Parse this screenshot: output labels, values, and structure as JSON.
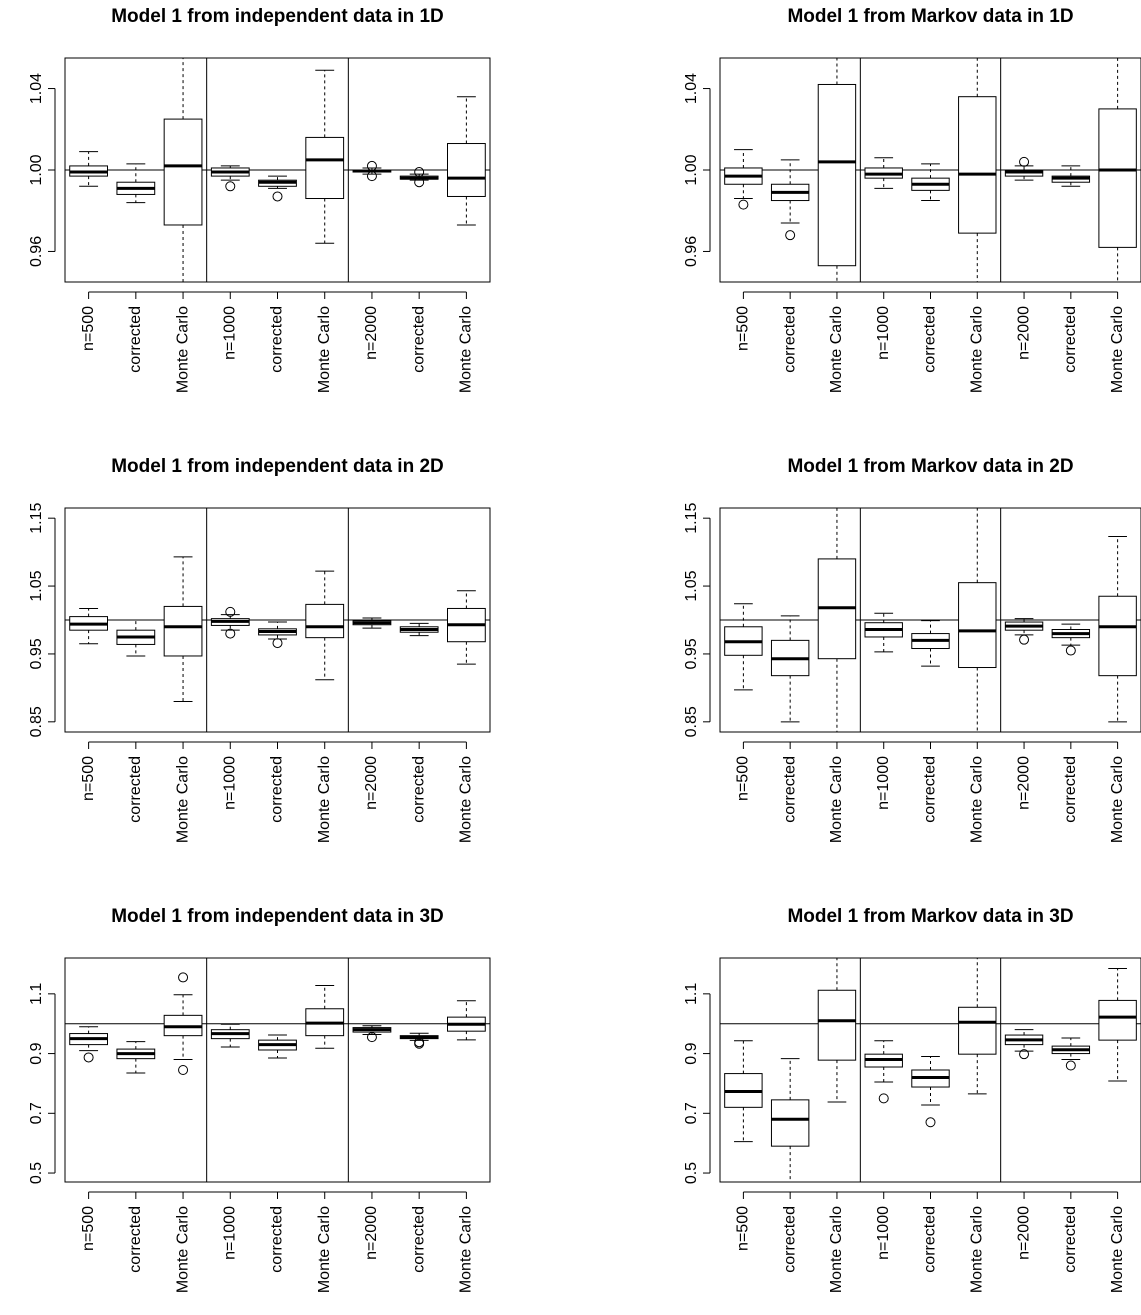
{
  "chart_data": [
    {
      "type": "box",
      "title": "Model 1 from independent data in 1D",
      "categories": [
        "n=500",
        "corrected",
        "Monte Carlo",
        "n=1000",
        "corrected",
        "Monte Carlo",
        "n=2000",
        "corrected",
        "Monte Carlo"
      ],
      "ylim": [
        0.945,
        1.055
      ],
      "yticks": [
        0.96,
        1.0,
        1.04
      ],
      "ytick_labels": [
        "0.96",
        "1.00",
        "1.04"
      ],
      "reference_line": 1.0,
      "group_separators_after": [
        3,
        6
      ],
      "boxes": [
        {
          "whisker_low": 0.992,
          "q1": 0.997,
          "median": 0.999,
          "q3": 1.002,
          "whisker_high": 1.009,
          "outliers": []
        },
        {
          "whisker_low": 0.984,
          "q1": 0.988,
          "median": 0.991,
          "q3": 0.994,
          "whisker_high": 1.003,
          "outliers": []
        },
        {
          "whisker_low": 0.945,
          "q1": 0.973,
          "median": 1.002,
          "q3": 1.025,
          "whisker_high": 1.055,
          "outliers": []
        },
        {
          "whisker_low": 0.995,
          "q1": 0.997,
          "median": 0.999,
          "q3": 1.001,
          "whisker_high": 1.002,
          "outliers": [
            0.992
          ]
        },
        {
          "whisker_low": 0.991,
          "q1": 0.992,
          "median": 0.994,
          "q3": 0.995,
          "whisker_high": 0.997,
          "outliers": [
            0.987
          ]
        },
        {
          "whisker_low": 0.964,
          "q1": 0.986,
          "median": 1.005,
          "q3": 1.016,
          "whisker_high": 1.049,
          "outliers": []
        },
        {
          "whisker_low": 0.998,
          "q1": 0.999,
          "median": 0.9995,
          "q3": 1.0,
          "whisker_high": 1.001,
          "outliers": [
            0.997,
            1.002
          ]
        },
        {
          "whisker_low": 0.995,
          "q1": 0.9955,
          "median": 0.996,
          "q3": 0.997,
          "whisker_high": 0.998,
          "outliers": [
            0.994,
            0.999
          ]
        },
        {
          "whisker_low": 0.973,
          "q1": 0.987,
          "median": 0.996,
          "q3": 1.013,
          "whisker_high": 1.036,
          "outliers": []
        }
      ]
    },
    {
      "type": "box",
      "title": "Model 1 from Markov data in 1D",
      "categories": [
        "n=500",
        "corrected",
        "Monte Carlo",
        "n=1000",
        "corrected",
        "Monte Carlo",
        "n=2000",
        "corrected",
        "Monte Carlo"
      ],
      "ylim": [
        0.945,
        1.055
      ],
      "yticks": [
        0.96,
        1.0,
        1.04
      ],
      "ytick_labels": [
        "0.96",
        "1.00",
        "1.04"
      ],
      "reference_line": 1.0,
      "group_separators_after": [
        3,
        6
      ],
      "boxes": [
        {
          "whisker_low": 0.986,
          "q1": 0.993,
          "median": 0.997,
          "q3": 1.001,
          "whisker_high": 1.01,
          "outliers": [
            0.983
          ]
        },
        {
          "whisker_low": 0.974,
          "q1": 0.985,
          "median": 0.989,
          "q3": 0.993,
          "whisker_high": 1.005,
          "outliers": [
            0.968
          ]
        },
        {
          "whisker_low": 0.945,
          "q1": 0.953,
          "median": 1.004,
          "q3": 1.042,
          "whisker_high": 1.055,
          "outliers": []
        },
        {
          "whisker_low": 0.991,
          "q1": 0.996,
          "median": 0.998,
          "q3": 1.001,
          "whisker_high": 1.006,
          "outliers": []
        },
        {
          "whisker_low": 0.985,
          "q1": 0.99,
          "median": 0.993,
          "q3": 0.996,
          "whisker_high": 1.003,
          "outliers": []
        },
        {
          "whisker_low": 0.945,
          "q1": 0.969,
          "median": 0.998,
          "q3": 1.036,
          "whisker_high": 1.055,
          "outliers": []
        },
        {
          "whisker_low": 0.995,
          "q1": 0.997,
          "median": 0.999,
          "q3": 1.0,
          "whisker_high": 1.002,
          "outliers": [
            1.004
          ]
        },
        {
          "whisker_low": 0.992,
          "q1": 0.994,
          "median": 0.996,
          "q3": 0.997,
          "whisker_high": 1.002,
          "outliers": []
        },
        {
          "whisker_low": 0.945,
          "q1": 0.962,
          "median": 1.0,
          "q3": 1.03,
          "whisker_high": 1.055,
          "outliers": []
        }
      ]
    },
    {
      "type": "box",
      "title": "Model 1 from independent data in 2D",
      "categories": [
        "n=500",
        "corrected",
        "Monte Carlo",
        "n=1000",
        "corrected",
        "Monte Carlo",
        "n=2000",
        "corrected",
        "Monte Carlo"
      ],
      "ylim": [
        0.835,
        1.165
      ],
      "yticks": [
        0.85,
        0.95,
        1.05,
        1.15
      ],
      "ytick_labels": [
        "0.85",
        "0.95",
        "1.05",
        "1.15"
      ],
      "reference_line": 1.0,
      "group_separators_after": [
        3,
        6
      ],
      "boxes": [
        {
          "whisker_low": 0.965,
          "q1": 0.985,
          "median": 0.994,
          "q3": 1.005,
          "whisker_high": 1.017,
          "outliers": []
        },
        {
          "whisker_low": 0.947,
          "q1": 0.964,
          "median": 0.975,
          "q3": 0.985,
          "whisker_high": 1.0,
          "outliers": []
        },
        {
          "whisker_low": 0.88,
          "q1": 0.947,
          "median": 0.99,
          "q3": 1.02,
          "whisker_high": 1.093,
          "outliers": []
        },
        {
          "whisker_low": 0.985,
          "q1": 0.992,
          "median": 0.998,
          "q3": 1.002,
          "whisker_high": 1.008,
          "outliers": [
            0.98,
            1.012
          ]
        },
        {
          "whisker_low": 0.972,
          "q1": 0.978,
          "median": 0.983,
          "q3": 0.987,
          "whisker_high": 0.997,
          "outliers": [
            0.966
          ]
        },
        {
          "whisker_low": 0.912,
          "q1": 0.974,
          "median": 0.99,
          "q3": 1.023,
          "whisker_high": 1.072,
          "outliers": []
        },
        {
          "whisker_low": 0.988,
          "q1": 0.993,
          "median": 0.996,
          "q3": 0.999,
          "whisker_high": 1.003,
          "outliers": []
        },
        {
          "whisker_low": 0.977,
          "q1": 0.982,
          "median": 0.986,
          "q3": 0.99,
          "whisker_high": 0.995,
          "outliers": []
        },
        {
          "whisker_low": 0.935,
          "q1": 0.968,
          "median": 0.993,
          "q3": 1.017,
          "whisker_high": 1.043,
          "outliers": []
        }
      ]
    },
    {
      "type": "box",
      "title": "Model 1 from Markov data in 2D",
      "categories": [
        "n=500",
        "corrected",
        "Monte Carlo",
        "n=1000",
        "corrected",
        "Monte Carlo",
        "n=2000",
        "corrected",
        "Monte Carlo"
      ],
      "ylim": [
        0.835,
        1.165
      ],
      "yticks": [
        0.85,
        0.95,
        1.05,
        1.15
      ],
      "ytick_labels": [
        "0.85",
        "0.95",
        "1.05",
        "1.15"
      ],
      "reference_line": 1.0,
      "group_separators_after": [
        3,
        6
      ],
      "boxes": [
        {
          "whisker_low": 0.897,
          "q1": 0.948,
          "median": 0.968,
          "q3": 0.99,
          "whisker_high": 1.024,
          "outliers": []
        },
        {
          "whisker_low": 0.85,
          "q1": 0.918,
          "median": 0.943,
          "q3": 0.97,
          "whisker_high": 1.006,
          "outliers": []
        },
        {
          "whisker_low": 0.835,
          "q1": 0.943,
          "median": 1.018,
          "q3": 1.09,
          "whisker_high": 1.165,
          "outliers": []
        },
        {
          "whisker_low": 0.953,
          "q1": 0.975,
          "median": 0.986,
          "q3": 0.996,
          "whisker_high": 1.01,
          "outliers": []
        },
        {
          "whisker_low": 0.932,
          "q1": 0.958,
          "median": 0.97,
          "q3": 0.98,
          "whisker_high": 0.999,
          "outliers": []
        },
        {
          "whisker_low": 0.835,
          "q1": 0.93,
          "median": 0.984,
          "q3": 1.055,
          "whisker_high": 1.165,
          "outliers": []
        },
        {
          "whisker_low": 0.978,
          "q1": 0.985,
          "median": 0.991,
          "q3": 0.997,
          "whisker_high": 1.002,
          "outliers": [
            0.971
          ]
        },
        {
          "whisker_low": 0.963,
          "q1": 0.974,
          "median": 0.98,
          "q3": 0.986,
          "whisker_high": 0.994,
          "outliers": [
            0.955
          ]
        },
        {
          "whisker_low": 0.85,
          "q1": 0.918,
          "median": 0.99,
          "q3": 1.035,
          "whisker_high": 1.123,
          "outliers": []
        }
      ]
    },
    {
      "type": "box",
      "title": "Model 1 from independent data in 3D",
      "categories": [
        "n=500",
        "corrected",
        "Monte Carlo",
        "n=1000",
        "corrected",
        "Monte Carlo",
        "n=2000",
        "corrected",
        "Monte Carlo"
      ],
      "ylim": [
        0.47,
        1.22
      ],
      "yticks": [
        0.5,
        0.7,
        0.9,
        1.1
      ],
      "ytick_labels": [
        "0.5",
        "0.7",
        "0.9",
        "1.1"
      ],
      "reference_line": 1.0,
      "group_separators_after": [
        3,
        6
      ],
      "boxes": [
        {
          "whisker_low": 0.91,
          "q1": 0.93,
          "median": 0.95,
          "q3": 0.967,
          "whisker_high": 0.99,
          "outliers": [
            0.887
          ]
        },
        {
          "whisker_low": 0.835,
          "q1": 0.883,
          "median": 0.9,
          "q3": 0.915,
          "whisker_high": 0.94,
          "outliers": []
        },
        {
          "whisker_low": 0.88,
          "q1": 0.96,
          "median": 0.99,
          "q3": 1.028,
          "whisker_high": 1.097,
          "outliers": [
            0.845,
            1.155
          ]
        },
        {
          "whisker_low": 0.922,
          "q1": 0.95,
          "median": 0.967,
          "q3": 0.98,
          "whisker_high": 0.998,
          "outliers": []
        },
        {
          "whisker_low": 0.885,
          "q1": 0.912,
          "median": 0.93,
          "q3": 0.945,
          "whisker_high": 0.962,
          "outliers": []
        },
        {
          "whisker_low": 0.918,
          "q1": 0.96,
          "median": 1.002,
          "q3": 1.05,
          "whisker_high": 1.128,
          "outliers": []
        },
        {
          "whisker_low": 0.964,
          "q1": 0.972,
          "median": 0.98,
          "q3": 0.987,
          "whisker_high": 0.993,
          "outliers": [
            0.955
          ]
        },
        {
          "whisker_low": 0.944,
          "q1": 0.95,
          "median": 0.955,
          "q3": 0.96,
          "whisker_high": 0.968,
          "outliers": [
            0.933,
            0.938
          ]
        },
        {
          "whisker_low": 0.946,
          "q1": 0.975,
          "median": 0.998,
          "q3": 1.022,
          "whisker_high": 1.077,
          "outliers": []
        }
      ]
    },
    {
      "type": "box",
      "title": "Model 1 from Markov data in 3D",
      "categories": [
        "n=500",
        "corrected",
        "Monte Carlo",
        "n=1000",
        "corrected",
        "Monte Carlo",
        "n=2000",
        "corrected",
        "Monte Carlo"
      ],
      "ylim": [
        0.47,
        1.22
      ],
      "yticks": [
        0.5,
        0.7,
        0.9,
        1.1
      ],
      "ytick_labels": [
        "0.5",
        "0.7",
        "0.9",
        "1.1"
      ],
      "reference_line": 1.0,
      "group_separators_after": [
        3,
        6
      ],
      "boxes": [
        {
          "whisker_low": 0.605,
          "q1": 0.72,
          "median": 0.773,
          "q3": 0.833,
          "whisker_high": 0.943,
          "outliers": []
        },
        {
          "whisker_low": 0.47,
          "q1": 0.59,
          "median": 0.68,
          "q3": 0.745,
          "whisker_high": 0.883,
          "outliers": []
        },
        {
          "whisker_low": 0.738,
          "q1": 0.878,
          "median": 1.01,
          "q3": 1.112,
          "whisker_high": 1.22,
          "outliers": []
        },
        {
          "whisker_low": 0.805,
          "q1": 0.855,
          "median": 0.88,
          "q3": 0.898,
          "whisker_high": 0.943,
          "outliers": [
            0.75
          ]
        },
        {
          "whisker_low": 0.728,
          "q1": 0.788,
          "median": 0.82,
          "q3": 0.845,
          "whisker_high": 0.89,
          "outliers": [
            0.67
          ]
        },
        {
          "whisker_low": 0.765,
          "q1": 0.898,
          "median": 1.005,
          "q3": 1.055,
          "whisker_high": 1.22,
          "outliers": []
        },
        {
          "whisker_low": 0.908,
          "q1": 0.93,
          "median": 0.946,
          "q3": 0.962,
          "whisker_high": 0.98,
          "outliers": [
            0.898
          ]
        },
        {
          "whisker_low": 0.88,
          "q1": 0.9,
          "median": 0.913,
          "q3": 0.925,
          "whisker_high": 0.952,
          "outliers": [
            0.86
          ]
        },
        {
          "whisker_low": 0.808,
          "q1": 0.945,
          "median": 1.022,
          "q3": 1.078,
          "whisker_high": 1.185,
          "outliers": []
        }
      ]
    }
  ]
}
